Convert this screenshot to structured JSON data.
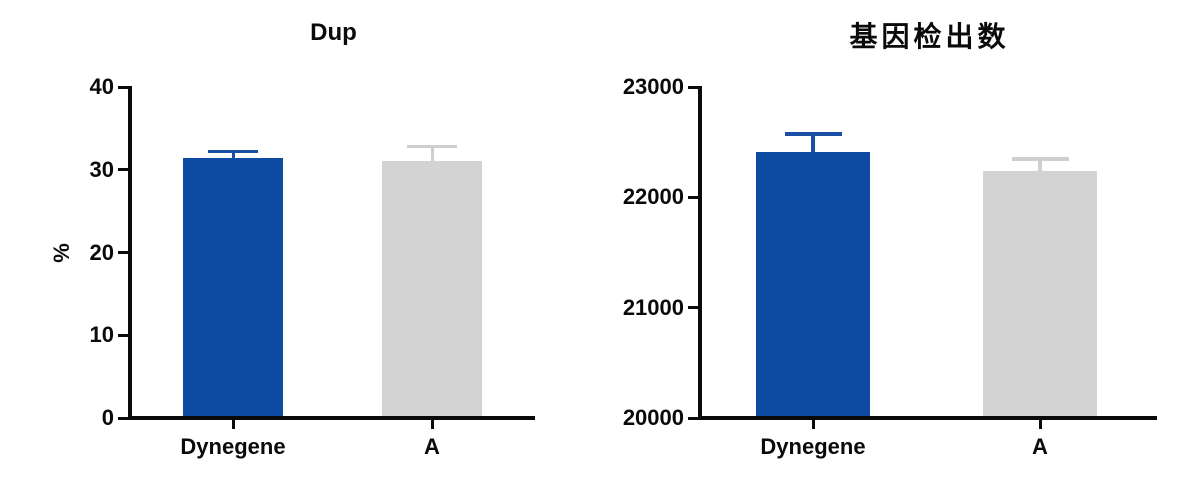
{
  "figure": {
    "background": "#ffffff",
    "text_color": "#0a0a0a"
  },
  "chart_data": [
    {
      "type": "bar",
      "title": "Dup",
      "xlabel": "",
      "ylabel": "%",
      "categories": [
        "Dynegene",
        "A"
      ],
      "values": [
        31.4,
        31.1
      ],
      "errors": [
        0.8,
        1.7
      ],
      "ylim": [
        0,
        40
      ],
      "yticks": [
        0,
        10,
        20,
        30,
        40
      ],
      "bar_colors": [
        "#0D4BA2",
        "#D3D3D3"
      ],
      "error_colors": [
        "#1B4FA4",
        "#CFCFCF"
      ],
      "grid": false,
      "legend": "none"
    },
    {
      "type": "bar",
      "title": "基因检出数",
      "xlabel": "",
      "ylabel": "",
      "categories": [
        "Dynegene",
        "A"
      ],
      "values": [
        22410,
        22240
      ],
      "errors": [
        165,
        110
      ],
      "ylim": [
        20000,
        23000
      ],
      "yticks": [
        20000,
        21000,
        22000,
        23000
      ],
      "bar_colors": [
        "#0D4BA2",
        "#D3D3D3"
      ],
      "error_colors": [
        "#1B4FA4",
        "#CFCFCF"
      ],
      "grid": false,
      "legend": "none"
    }
  ]
}
